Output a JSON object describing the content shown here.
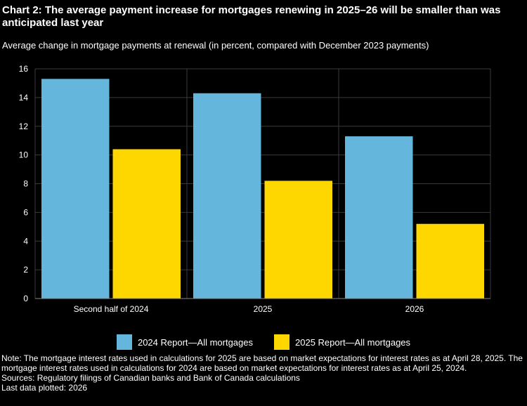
{
  "title": "Chart 2: The average payment increase for mortgages renewing in 2025–26 will be smaller than was anticipated last year",
  "subtitle": "Average change in mortgage payments at renewal (in percent, compared with December 2023 payments)",
  "chart_data": {
    "type": "bar",
    "categories": [
      "Second half of 2024",
      "2025",
      "2026"
    ],
    "series": [
      {
        "name": "2024 Report—All mortgages",
        "color": "#65b6dc",
        "values": [
          15.3,
          14.3,
          11.3
        ]
      },
      {
        "name": "2025 Report—All mortgages",
        "color": "#ffd700",
        "values": [
          10.4,
          8.2,
          5.2
        ]
      }
    ],
    "ylim": [
      0,
      16
    ],
    "yticks": [
      0,
      2,
      4,
      6,
      8,
      10,
      12,
      14,
      16
    ],
    "ylabel": "",
    "xlabel": "",
    "grid": true,
    "legend_position": "bottom"
  },
  "notes": {
    "note": "Note: The mortgage interest rates used in calculations for 2025 are based on market expectations for interest rates as at April 28, 2025. The mortgage interest rates used in calculations for 2024 are based on market expectations for interest rates as at April 25, 2024.",
    "sources": "Sources: Regulatory filings of Canadian banks and Bank of Canada calculations",
    "last_data": "Last data plotted: 2026"
  }
}
